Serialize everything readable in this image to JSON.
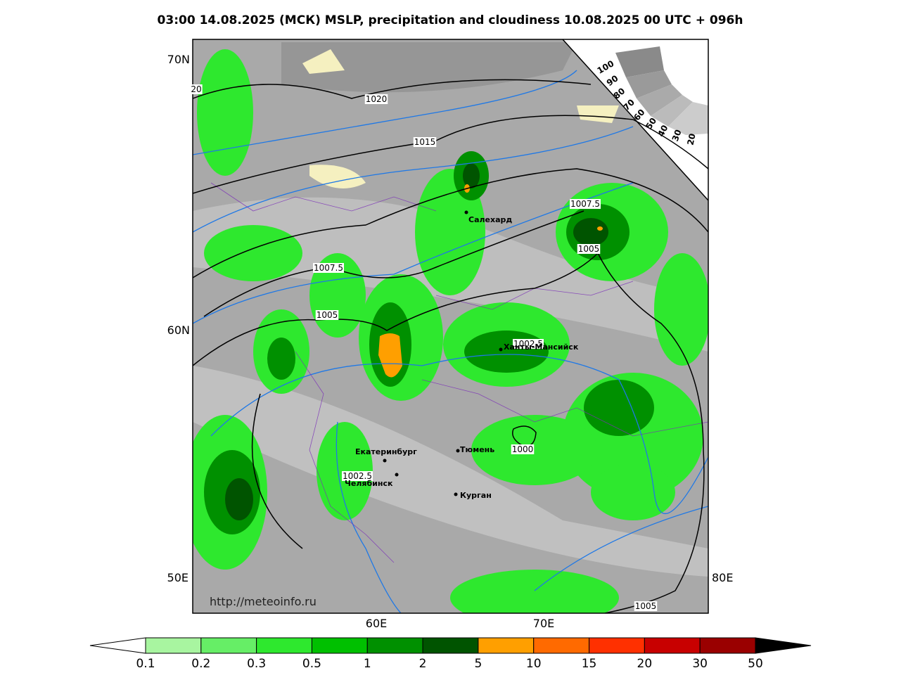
{
  "title": "03:00 14.08.2025 (МСК) MSLP, precipitation and cloudiness 10.08.2025 00 UTC + 096h",
  "map": {
    "lat_labels": [
      "70N",
      "60N"
    ],
    "lon_labels": [
      "50E",
      "60E",
      "70E",
      "80E"
    ],
    "isobar_labels": [
      "20",
      "1020",
      "1015",
      "1007.5",
      "1005",
      "1007.5",
      "1005",
      "1002.5",
      "1000",
      "1002.5",
      "1005"
    ],
    "cities": [
      "Салехард",
      "Ханты-Мансийск",
      "Тюмень",
      "Екатеринбург",
      "Челябинск",
      "Курган"
    ],
    "cloud_scale": [
      "100",
      "90",
      "80",
      "70",
      "60",
      "50",
      "40",
      "30",
      "20"
    ],
    "watermark": "http://meteoinfo.ru"
  },
  "colorbar": {
    "labels": [
      "0.1",
      "0.2",
      "0.3",
      "0.5",
      "1",
      "2",
      "5",
      "10",
      "15",
      "20",
      "30",
      "50"
    ],
    "colors": [
      "#a8f5a0",
      "#66ee66",
      "#2ee82e",
      "#00c000",
      "#009000",
      "#005400",
      "#ff9f00",
      "#ff6a00",
      "#ff3000",
      "#c80000",
      "#9a0000"
    ]
  }
}
